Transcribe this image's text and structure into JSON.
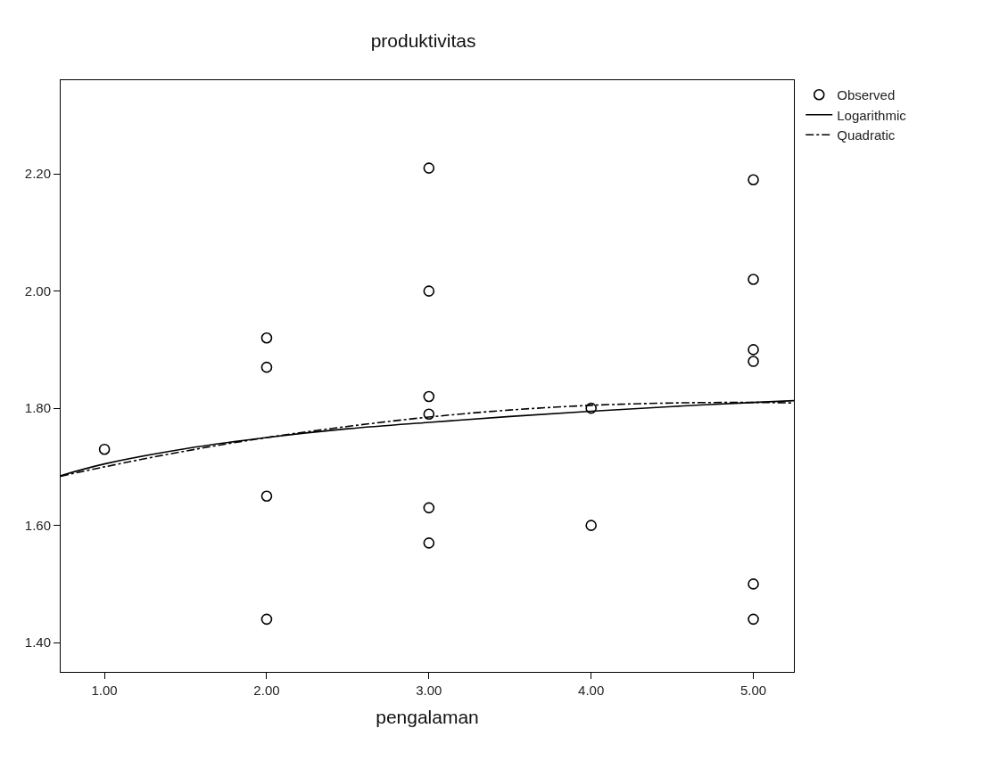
{
  "chart_data": {
    "type": "scatter",
    "title": "produktivitas",
    "xlabel": "pengalaman",
    "xlim": [
      0.73,
      5.25
    ],
    "xticks": [
      {
        "value": 1,
        "label": "1.00"
      },
      {
        "value": 2,
        "label": "2.00"
      },
      {
        "value": 3,
        "label": "3.00"
      },
      {
        "value": 4,
        "label": "4.00"
      },
      {
        "value": 5,
        "label": "5.00"
      }
    ],
    "ylim": [
      1.35,
      2.36
    ],
    "yticks": [
      {
        "value": 1.4,
        "label": "1.40"
      },
      {
        "value": 1.6,
        "label": "1.60"
      },
      {
        "value": 1.8,
        "label": "1.80"
      },
      {
        "value": 2.0,
        "label": "2.00"
      },
      {
        "value": 2.2,
        "label": "2.20"
      }
    ],
    "grid": false,
    "legend": "top right",
    "series": [
      {
        "name": "Observed",
        "marker": "circle",
        "color": "#000000",
        "x": [
          1,
          2,
          2,
          2,
          2,
          3,
          3,
          3,
          3,
          3,
          3,
          4,
          4,
          5,
          5,
          5,
          5,
          5,
          5
        ],
        "values": [
          1.73,
          1.92,
          1.87,
          1.65,
          1.44,
          2.21,
          2.0,
          1.82,
          1.79,
          1.63,
          1.57,
          1.8,
          1.6,
          2.19,
          2.02,
          1.9,
          1.88,
          1.5,
          1.44
        ]
      },
      {
        "name": "Logarithmic",
        "type": "line",
        "marker": "none",
        "line_style": "solid",
        "color": "#000000",
        "x": [
          0.73,
          1,
          1.5,
          2,
          2.5,
          3,
          3.5,
          4,
          4.5,
          5,
          5.25
        ],
        "values": [
          1.685,
          1.705,
          1.731,
          1.75,
          1.765,
          1.776,
          1.786,
          1.795,
          1.803,
          1.81,
          1.813
        ]
      },
      {
        "name": "Quadratic",
        "type": "line",
        "marker": "none",
        "line_style": "dashdot",
        "color": "#000000",
        "x": [
          0.73,
          1,
          1.5,
          2,
          2.5,
          3,
          3.5,
          4,
          4.5,
          5,
          5.25
        ],
        "values": [
          1.684,
          1.7,
          1.727,
          1.75,
          1.769,
          1.785,
          1.797,
          1.805,
          1.809,
          1.81,
          1.809
        ]
      }
    ]
  }
}
